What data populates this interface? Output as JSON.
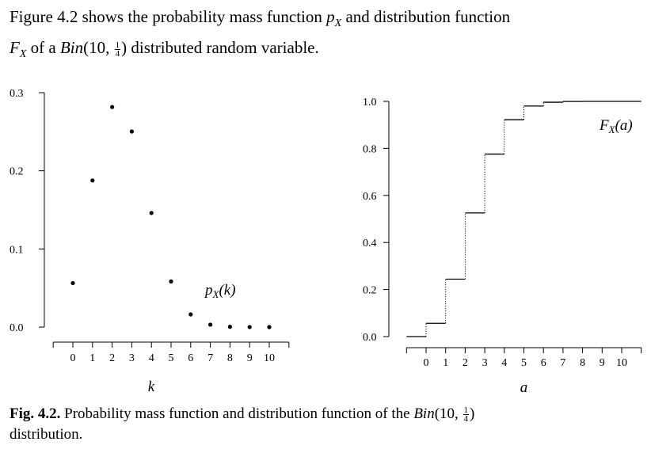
{
  "intro": {
    "part1": "Figure 4.2 shows the probability mass function ",
    "pX": "p",
    "pXsub": "X",
    "part2": " and distribution function",
    "FX": "F",
    "FXsub": "X",
    "part3": " of a ",
    "bin": "Bin",
    "paren_open": "(10, ",
    "frac_num": "1",
    "frac_den": "4",
    "paren_close": ")",
    "part4": " distributed random variable."
  },
  "caption": {
    "label": "Fig. 4.2.",
    "text1": " Probability mass function and distribution function of the ",
    "bin": "Bin",
    "paren_open": "(10, ",
    "frac_num": "1",
    "frac_den": "4",
    "paren_close": ")",
    "text2": "distribution."
  },
  "chart_data": [
    {
      "type": "scatter",
      "title": "",
      "xlabel": "k",
      "ylabel": "",
      "series_label": "pX(k)",
      "series_label_parts": {
        "main": "p",
        "sub": "X",
        "arg": "(k)"
      },
      "x": [
        0,
        1,
        2,
        3,
        4,
        5,
        6,
        7,
        8,
        9,
        10
      ],
      "y": [
        0.0563,
        0.1877,
        0.2816,
        0.2503,
        0.146,
        0.0584,
        0.0162,
        0.0031,
        0.0004,
        3e-05,
        1e-06
      ],
      "x_ticks": [
        "0",
        "1",
        "2",
        "3",
        "4",
        "5",
        "6",
        "7",
        "8",
        "9",
        "10"
      ],
      "y_ticks": [
        "0.0",
        "0.1",
        "0.2",
        "0.3"
      ],
      "y_tick_values": [
        0.0,
        0.1,
        0.2,
        0.3
      ],
      "xlim": [
        -1,
        11
      ],
      "ylim": [
        0,
        0.3
      ],
      "grid": false
    },
    {
      "type": "line",
      "step": true,
      "title": "",
      "xlabel": "a",
      "ylabel": "",
      "series_label": "FX(a)",
      "series_label_parts": {
        "main": "F",
        "sub": "X",
        "arg": "(a)"
      },
      "x": [
        0,
        1,
        2,
        3,
        4,
        5,
        6,
        7,
        8,
        9,
        10
      ],
      "y": [
        0.0563,
        0.244,
        0.5256,
        0.7759,
        0.9219,
        0.9803,
        0.9965,
        0.9996,
        1.0,
        1.0,
        1.0
      ],
      "x_ticks": [
        "0",
        "1",
        "2",
        "3",
        "4",
        "5",
        "6",
        "7",
        "8",
        "9",
        "10"
      ],
      "y_ticks": [
        "0.0",
        "0.2",
        "0.4",
        "0.6",
        "0.8",
        "1.0"
      ],
      "y_tick_values": [
        0.0,
        0.2,
        0.4,
        0.6,
        0.8,
        1.0
      ],
      "xlim": [
        -1,
        11
      ],
      "ylim": [
        0,
        1.0
      ],
      "grid": false
    }
  ]
}
